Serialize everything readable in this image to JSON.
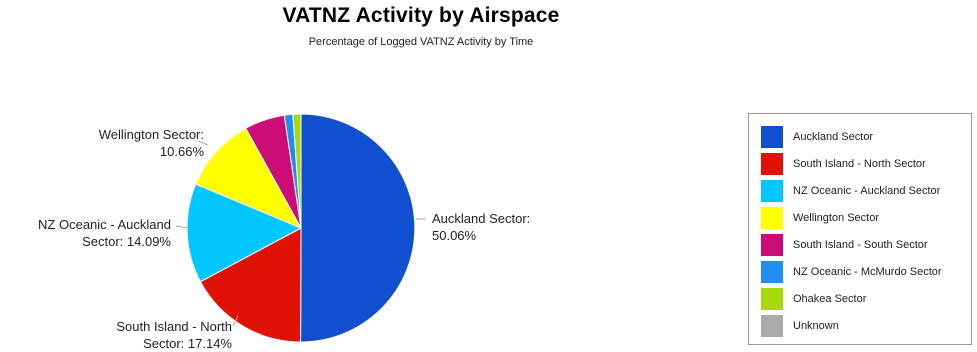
{
  "chart_data": {
    "type": "pie",
    "title": "VATNZ Activity by Airspace",
    "subtitle": "Percentage of Logged VATNZ Activity by Time",
    "slices": [
      {
        "name": "Auckland Sector",
        "value": 50.06,
        "color": "#1050D0",
        "label_lines": [
          "Auckland Sector:",
          "50.06%"
        ]
      },
      {
        "name": "South Island - North Sector",
        "value": 17.14,
        "color": "#E01205",
        "label_lines": [
          "South Island - North",
          "Sector: 17.14%"
        ]
      },
      {
        "name": "NZ Oceanic - Auckland Sector",
        "value": 14.09,
        "color": "#00C8FF",
        "label_lines": [
          "NZ Oceanic - Auckland",
          "Sector: 14.09%"
        ]
      },
      {
        "name": "Wellington Sector",
        "value": 10.66,
        "color": "#FFFF00",
        "label_lines": [
          "Wellington Sector:",
          "10.66%"
        ]
      },
      {
        "name": "South Island - South Sector",
        "value": 5.71,
        "color": "#CC0D78",
        "label_lines": []
      },
      {
        "name": "NZ Oceanic - McMurdo Sector",
        "value": 1.2,
        "color": "#1E8EF0",
        "label_lines": []
      },
      {
        "name": "Ohakea Sector",
        "value": 1.14,
        "color": "#A8D810",
        "label_lines": []
      },
      {
        "name": "Unknown",
        "value": 0.0,
        "color": "#AAAAAA",
        "label_lines": []
      }
    ],
    "legend": {
      "placement": "right",
      "entries": [
        "Auckland Sector",
        "South Island - North Sector",
        "NZ Oceanic - Auckland Sector",
        "Wellington Sector",
        "South Island - South Sector",
        "NZ Oceanic - McMurdo Sector",
        "Ohakea Sector",
        "Unknown"
      ]
    }
  }
}
